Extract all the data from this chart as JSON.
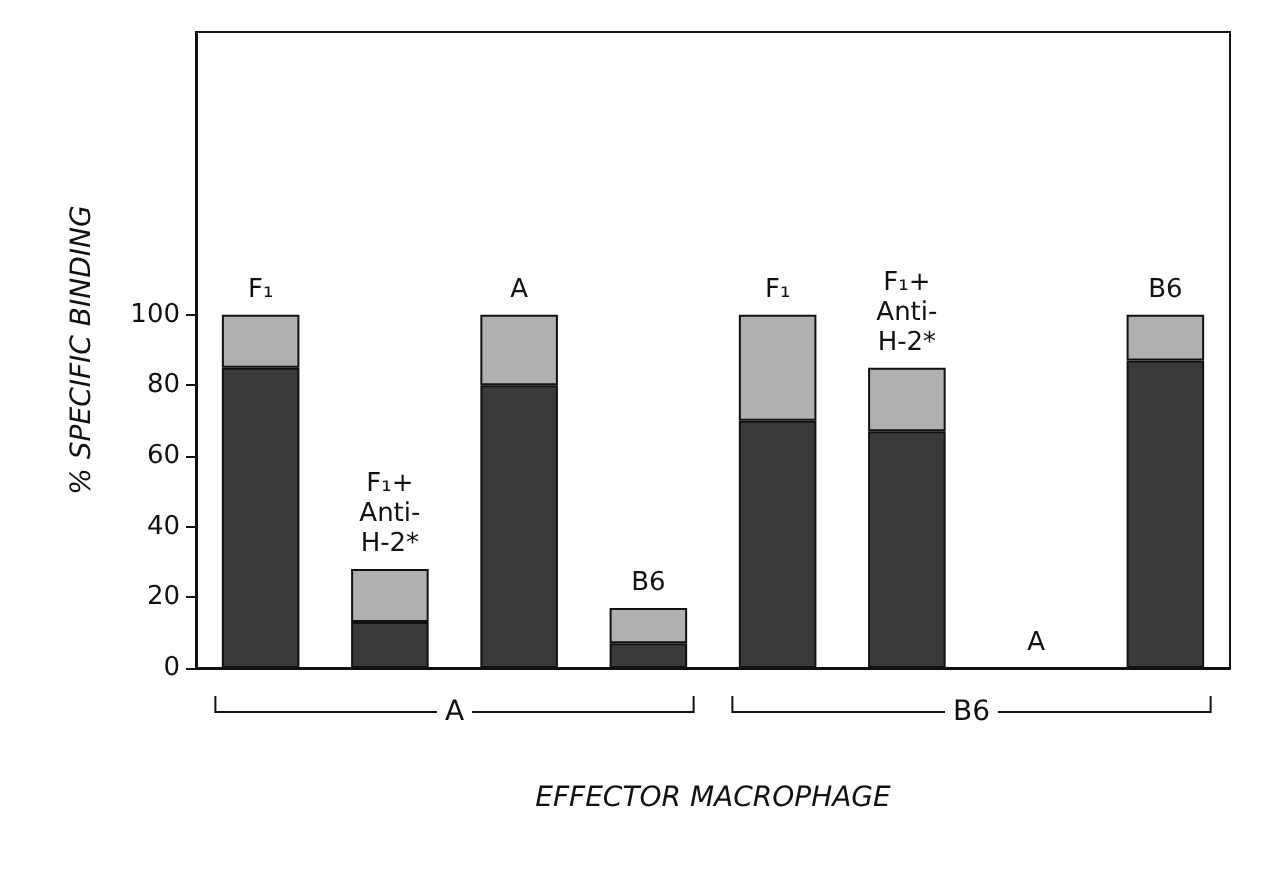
{
  "chart_data": {
    "type": "bar",
    "stacked": true,
    "xlabel": "EFFECTOR MACROPHAGE",
    "ylabel": "% SPECIFIC BINDING",
    "categories": [
      "F₁",
      "F₁+ Anti- H-2*",
      "A",
      "B6",
      "F₁",
      "F₁+ Anti- H-2*",
      "A",
      "B6"
    ],
    "series": [
      {
        "color": "#3a3a3a",
        "values": [
          85,
          13,
          80,
          7,
          70,
          67,
          0,
          87
        ]
      },
      {
        "color": "#b0b0b0",
        "values": [
          15,
          15,
          20,
          10,
          30,
          18,
          0,
          13
        ]
      }
    ],
    "ylim": [
      0,
      180
    ],
    "yticks": [
      0,
      20,
      40,
      60,
      80,
      100
    ],
    "grid": false,
    "annotations": [
      "A",
      "B6"
    ]
  }
}
